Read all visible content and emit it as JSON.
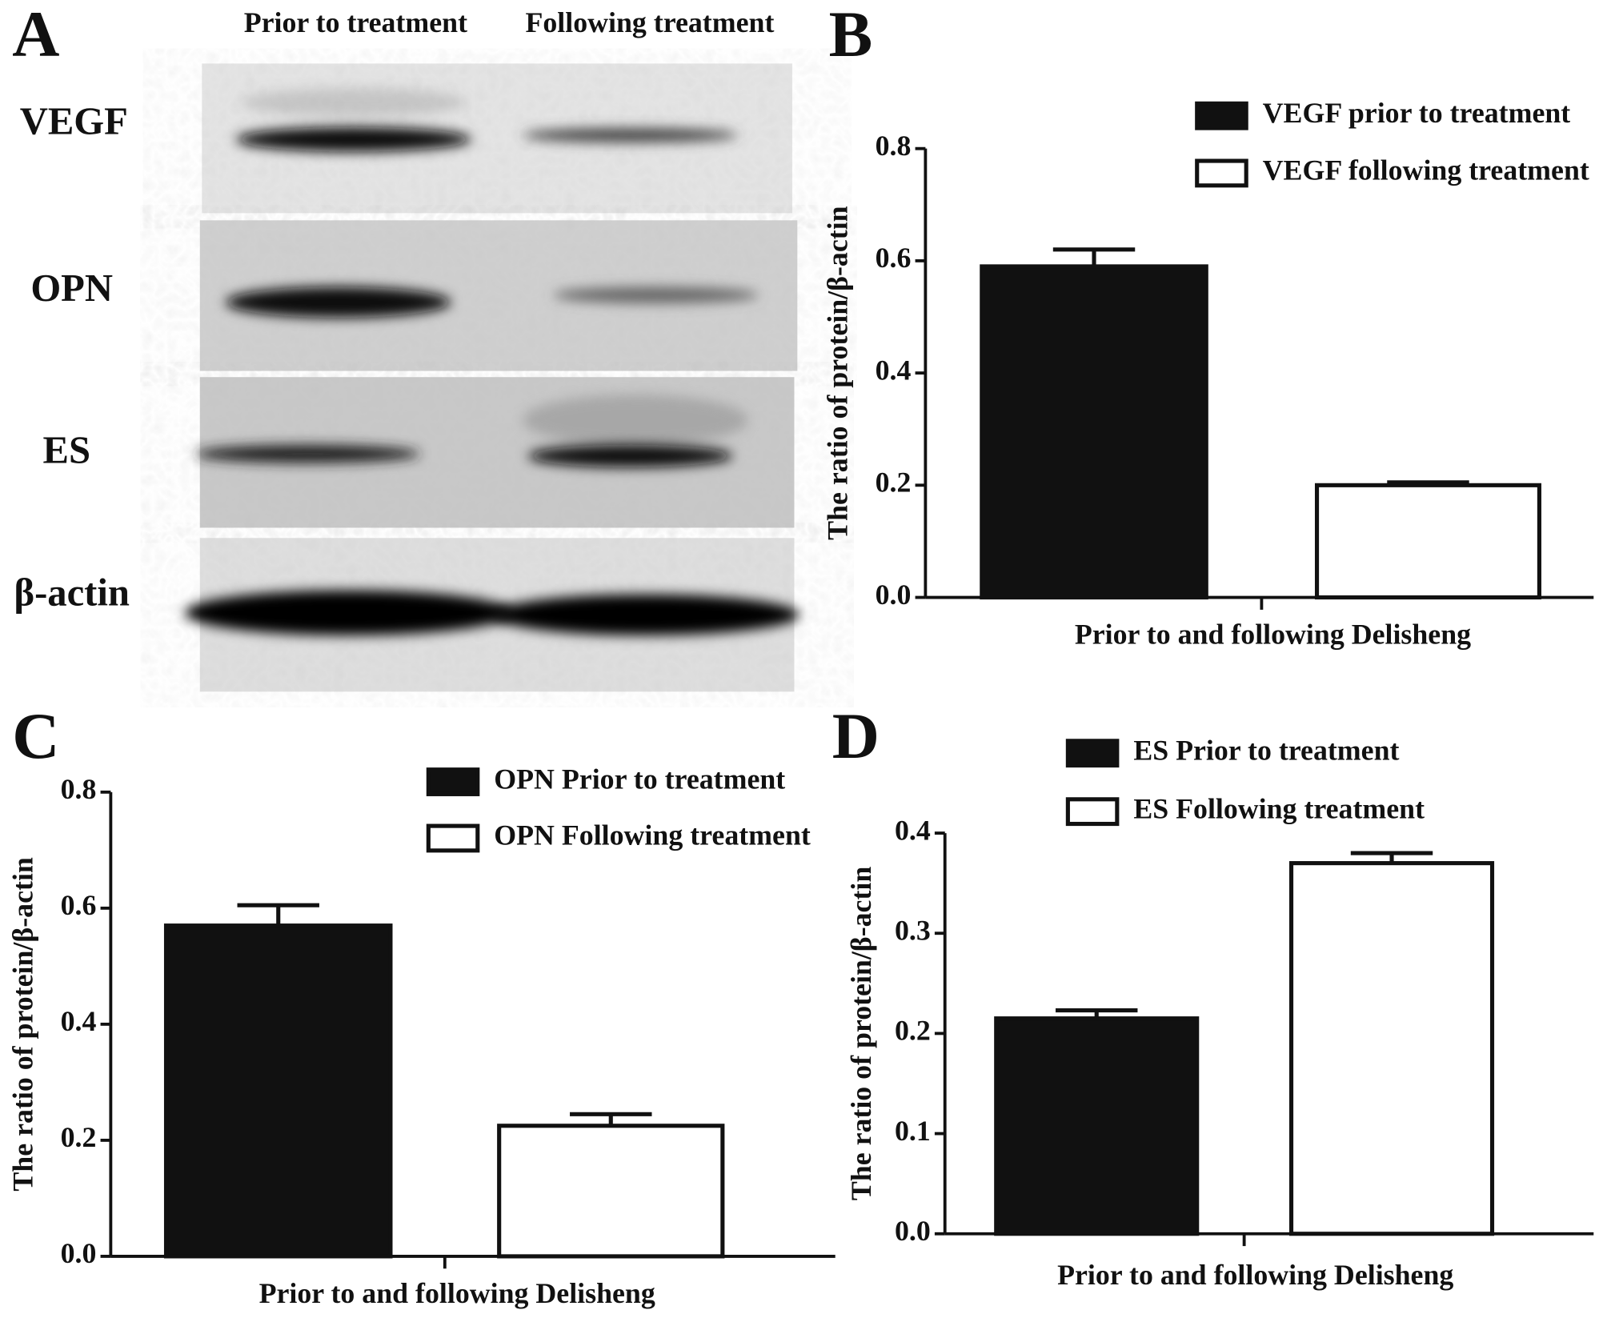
{
  "blot": {
    "panel_label": "A",
    "columns": [
      "Prior to treatment",
      "Following treatment"
    ],
    "rows": [
      "VEGF",
      "OPN",
      "ES",
      "β-actin"
    ]
  },
  "chart_data": [
    {
      "type": "bar",
      "panel_label": "B",
      "categories": [
        null
      ],
      "xlabel": "Prior to and following Delisheng",
      "ylabel": "The ratio of protein/β-actin",
      "series": [
        {
          "name": "VEGF prior to treatment",
          "color": "#111111",
          "values": [
            0.59
          ],
          "errors": [
            0.03
          ]
        },
        {
          "name": "VEGF following treatment",
          "color": "#ffffff",
          "values": [
            0.2
          ],
          "errors": [
            0.005
          ]
        }
      ],
      "ylim": [
        0,
        0.8
      ],
      "yticks": [
        {
          "value": 0,
          "label": "0.0"
        },
        0.2,
        0.4,
        0.6,
        0.8
      ]
    },
    {
      "type": "bar",
      "panel_label": "C",
      "categories": [
        null
      ],
      "xlabel": "Prior to and following Delisheng",
      "ylabel": "The ratio of protein/β-actin",
      "series": [
        {
          "name": "OPN Prior to treatment",
          "color": "#111111",
          "values": [
            0.57
          ],
          "errors": [
            0.035
          ]
        },
        {
          "name": "OPN Following treatment",
          "color": "#ffffff",
          "values": [
            0.225
          ],
          "errors": [
            0.02
          ]
        }
      ],
      "ylim": [
        0,
        0.8
      ],
      "yticks": [
        {
          "value": 0,
          "label": "0.0"
        },
        0.2,
        0.4,
        0.6,
        0.8
      ]
    },
    {
      "type": "bar",
      "panel_label": "D",
      "categories": [
        null
      ],
      "xlabel": "Prior to and following Delisheng",
      "ylabel": "The ratio of protein/β-actin",
      "series": [
        {
          "name": "ES Prior to treatment",
          "color": "#111111",
          "values": [
            0.215
          ],
          "errors": [
            0.008
          ]
        },
        {
          "name": "ES Following treatment",
          "color": "#ffffff",
          "values": [
            0.37
          ],
          "errors": [
            0.01
          ]
        }
      ],
      "ylim": [
        0,
        0.4
      ],
      "yticks": [
        {
          "value": 0,
          "label": "0.0"
        },
        0.1,
        0.2,
        0.3,
        0.4
      ]
    }
  ]
}
